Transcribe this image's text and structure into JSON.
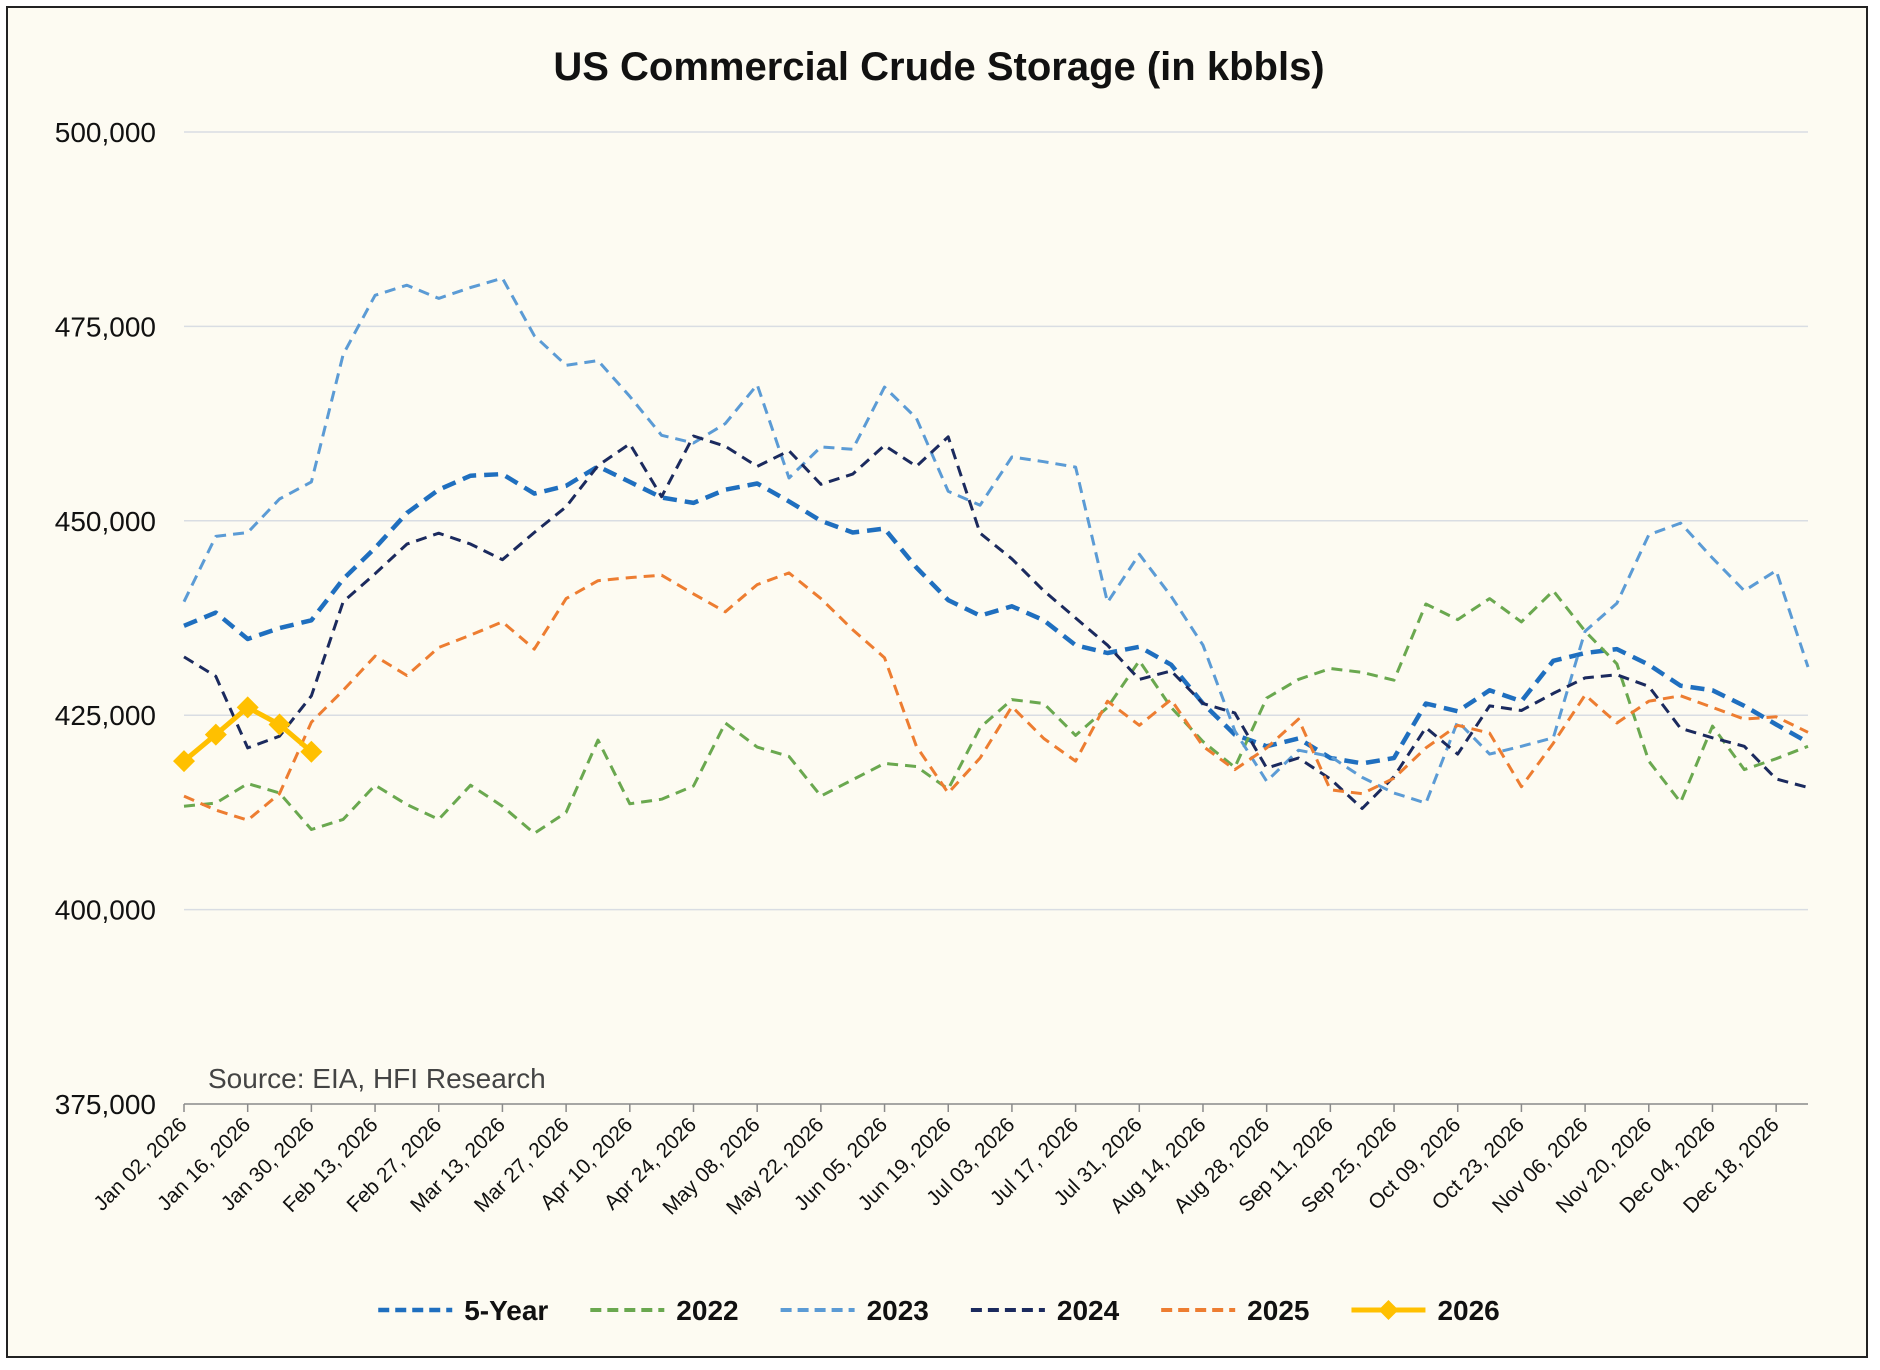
{
  "chart_data": {
    "type": "line",
    "title": "US Commercial Crude Storage (in kbbls)",
    "source": "Source: EIA, HFI Research",
    "xlabel": "",
    "ylabel": "",
    "ylim": [
      375000,
      500000
    ],
    "yticks": [
      375000,
      400000,
      425000,
      450000,
      475000,
      500000
    ],
    "ytick_labels": [
      "375,000",
      "400,000",
      "425,000",
      "450,000",
      "475,000",
      "500,000"
    ],
    "x_tick_labels": [
      "Jan 02, 2026",
      "Jan 16, 2026",
      "Jan 30, 2026",
      "Feb 13, 2026",
      "Feb 27, 2026",
      "Mar 13, 2026",
      "Mar 27, 2026",
      "Apr 10, 2026",
      "Apr 24, 2026",
      "May 08, 2026",
      "May 22, 2026",
      "Jun 05, 2026",
      "Jun 19, 2026",
      "Jul 03, 2026",
      "Jul 17, 2026",
      "Jul 31, 2026",
      "Aug 14, 2026",
      "Aug 28, 2026",
      "Sep 11, 2026",
      "Sep 25, 2026",
      "Oct 09, 2026",
      "Oct 23, 2026",
      "Nov 06, 2026",
      "Nov 20, 2026",
      "Dec 04, 2026",
      "Dec 18, 2026"
    ],
    "weeks": 52,
    "grid": true,
    "legend_position": "bottom",
    "series": [
      {
        "name": "5-Year",
        "color": "#1f6fbf",
        "style": "dashed-bold",
        "values": [
          436500,
          438200,
          434800,
          436200,
          437200,
          442500,
          446500,
          451000,
          454000,
          455800,
          456000,
          453500,
          454500,
          457000,
          455000,
          453000,
          452300,
          454000,
          454800,
          452500,
          450000,
          448500,
          449000,
          444000,
          439800,
          437800,
          439000,
          437200,
          434000,
          433000,
          433800,
          431500,
          426500,
          422500,
          421000,
          422000,
          419500,
          418800,
          419500,
          426500,
          425500,
          428200,
          426800,
          432000,
          433000,
          433500,
          431500,
          428800,
          428200,
          426200,
          423800,
          421500
        ]
      },
      {
        "name": "2022",
        "color": "#6aa84f",
        "style": "dashed",
        "values": [
          413300,
          413700,
          416200,
          415000,
          410300,
          411600,
          416000,
          413500,
          411600,
          416000,
          413300,
          409800,
          412500,
          421800,
          413600,
          414200,
          415900,
          424000,
          420900,
          419700,
          414600,
          416700,
          418800,
          418400,
          415500,
          423400,
          427000,
          426500,
          422400,
          426000,
          432000,
          426000,
          421600,
          418300,
          427200,
          429600,
          431000,
          430500,
          429500,
          439300,
          437300,
          440000,
          437000,
          441000,
          435800,
          431600,
          419100,
          413800,
          423600,
          418000,
          419400,
          421000
        ]
      },
      {
        "name": "2023",
        "color": "#5b9bd5",
        "style": "dashed",
        "values": [
          439600,
          448000,
          448500,
          452800,
          455000,
          471400,
          479000,
          480300,
          478600,
          480000,
          481200,
          473800,
          470000,
          470600,
          466000,
          461000,
          460000,
          462500,
          467500,
          455500,
          459500,
          459200,
          467200,
          463200,
          453800,
          452000,
          458200,
          457600,
          456900,
          439500,
          445700,
          440300,
          434000,
          423000,
          416500,
          420500,
          419700,
          417000,
          415000,
          413700,
          424200,
          420000,
          421000,
          422100,
          435800,
          439400,
          448200,
          449700,
          445200,
          441000,
          443600,
          431200
        ]
      },
      {
        "name": "2024",
        "color": "#1b2a5e",
        "style": "dashed",
        "values": [
          432500,
          430000,
          420800,
          422300,
          427500,
          439600,
          443200,
          447000,
          448400,
          447000,
          445000,
          448500,
          451800,
          457100,
          459900,
          453100,
          460900,
          459600,
          457000,
          459000,
          454700,
          456000,
          459700,
          457000,
          460800,
          448400,
          445100,
          441000,
          437500,
          434000,
          429600,
          430700,
          426500,
          425300,
          418200,
          419500,
          416800,
          413000,
          417100,
          423400,
          420000,
          426200,
          425600,
          427800,
          429800,
          430200,
          428700,
          423300,
          422100,
          421000,
          416800,
          415700
        ]
      },
      {
        "name": "2025",
        "color": "#ed7d31",
        "style": "dashed",
        "values": [
          414600,
          412800,
          411500,
          414900,
          424100,
          428200,
          432600,
          430100,
          433700,
          435300,
          437000,
          433500,
          440000,
          442300,
          442700,
          443000,
          440600,
          438300,
          441800,
          443300,
          440000,
          436000,
          432400,
          421000,
          415000,
          419500,
          426100,
          422000,
          419100,
          426800,
          423700,
          427000,
          421000,
          418000,
          420800,
          424500,
          415400,
          414900,
          416900,
          420800,
          423700,
          422700,
          415800,
          421400,
          427600,
          424000,
          426800,
          427500,
          426000,
          424500,
          424800,
          422800
        ]
      },
      {
        "name": "2026",
        "color": "#ffc000",
        "style": "solid-markers",
        "values": [
          419100,
          422500,
          426000,
          423800,
          420300
        ]
      }
    ]
  }
}
